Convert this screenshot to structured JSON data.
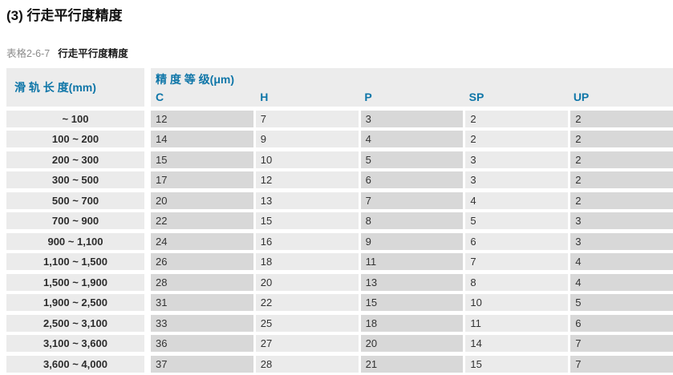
{
  "page_title": "(3) 行走平行度精度",
  "caption": {
    "label": "表格2-6-7",
    "title": "行走平行度精度"
  },
  "table": {
    "col1_header": "滑 轨 长 度(mm)",
    "group_header": "精 度 等 级(μm)",
    "grade_headers": [
      "C",
      "H",
      "P",
      "SP",
      "UP"
    ],
    "rows": [
      {
        "length": "~ 100",
        "values": [
          12,
          7,
          3,
          2,
          2
        ]
      },
      {
        "length": "100 ~ 200",
        "values": [
          14,
          9,
          4,
          2,
          2
        ]
      },
      {
        "length": "200 ~ 300",
        "values": [
          15,
          10,
          5,
          3,
          2
        ]
      },
      {
        "length": "300 ~ 500",
        "values": [
          17,
          12,
          6,
          3,
          2
        ]
      },
      {
        "length": "500 ~ 700",
        "values": [
          20,
          13,
          7,
          4,
          2
        ]
      },
      {
        "length": "700 ~ 900",
        "values": [
          22,
          15,
          8,
          5,
          3
        ]
      },
      {
        "length": "900 ~ 1,100",
        "values": [
          24,
          16,
          9,
          6,
          3
        ]
      },
      {
        "length": "1,100 ~ 1,500",
        "values": [
          26,
          18,
          11,
          7,
          4
        ]
      },
      {
        "length": "1,500 ~ 1,900",
        "values": [
          28,
          20,
          13,
          8,
          4
        ]
      },
      {
        "length": "1,900 ~ 2,500",
        "values": [
          31,
          22,
          15,
          10,
          5
        ]
      },
      {
        "length": "2,500 ~ 3,100",
        "values": [
          33,
          25,
          18,
          11,
          6
        ]
      },
      {
        "length": "3,100 ~ 3,600",
        "values": [
          36,
          27,
          20,
          14,
          7
        ]
      },
      {
        "length": "3,600 ~ 4,000",
        "values": [
          37,
          28,
          21,
          15,
          7
        ]
      }
    ]
  },
  "colors": {
    "accent_blue": "#0f76a8",
    "cell_dark": "#d8d8d8",
    "cell_light": "#ebebeb",
    "header_bg": "#ececec",
    "text_dark": "#333333",
    "caption_gray": "#8c8c8c"
  }
}
